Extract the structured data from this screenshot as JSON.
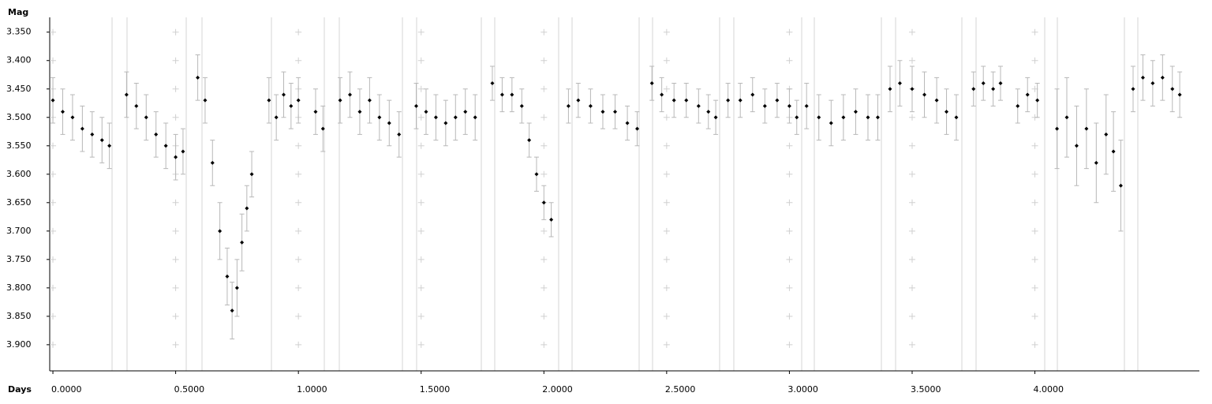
{
  "chart_data": {
    "type": "scatter",
    "x_label": "Days",
    "y_label": "Mag",
    "x": [
      0.0,
      0.04,
      0.08,
      0.12,
      0.16,
      0.2,
      0.23,
      0.3,
      0.34,
      0.38,
      0.42,
      0.46,
      0.5,
      0.53,
      0.59,
      0.62,
      0.65,
      0.68,
      0.71,
      0.73,
      0.75,
      0.77,
      0.79,
      0.81,
      0.88,
      0.91,
      0.94,
      0.97,
      1.0,
      1.07,
      1.1,
      1.17,
      1.21,
      1.25,
      1.29,
      1.33,
      1.37,
      1.41,
      1.48,
      1.52,
      1.56,
      1.6,
      1.64,
      1.68,
      1.72,
      1.79,
      1.83,
      1.87,
      1.91,
      1.94,
      1.97,
      2.0,
      2.03,
      2.1,
      2.14,
      2.19,
      2.24,
      2.29,
      2.34,
      2.38,
      2.44,
      2.48,
      2.53,
      2.58,
      2.63,
      2.67,
      2.7,
      2.75,
      2.8,
      2.85,
      2.9,
      2.95,
      3.0,
      3.03,
      3.07,
      3.12,
      3.17,
      3.22,
      3.27,
      3.32,
      3.36,
      3.41,
      3.45,
      3.5,
      3.55,
      3.6,
      3.64,
      3.68,
      3.75,
      3.79,
      3.83,
      3.86,
      3.93,
      3.97,
      4.01,
      4.09,
      4.13,
      4.17,
      4.21,
      4.25,
      4.29,
      4.32,
      4.35,
      4.4,
      4.44,
      4.48,
      4.52,
      4.56,
      4.59
    ],
    "values": [
      3.47,
      3.49,
      3.5,
      3.52,
      3.53,
      3.54,
      3.55,
      3.46,
      3.48,
      3.5,
      3.53,
      3.55,
      3.57,
      3.56,
      3.43,
      3.47,
      3.58,
      3.7,
      3.78,
      3.84,
      3.8,
      3.72,
      3.66,
      3.6,
      3.47,
      3.5,
      3.46,
      3.48,
      3.47,
      3.49,
      3.52,
      3.47,
      3.46,
      3.49,
      3.47,
      3.5,
      3.51,
      3.53,
      3.48,
      3.49,
      3.5,
      3.51,
      3.5,
      3.49,
      3.5,
      3.44,
      3.46,
      3.46,
      3.48,
      3.54,
      3.6,
      3.65,
      3.68,
      3.48,
      3.47,
      3.48,
      3.49,
      3.49,
      3.51,
      3.52,
      3.44,
      3.46,
      3.47,
      3.47,
      3.48,
      3.49,
      3.5,
      3.47,
      3.47,
      3.46,
      3.48,
      3.47,
      3.48,
      3.5,
      3.48,
      3.5,
      3.51,
      3.5,
      3.49,
      3.5,
      3.5,
      3.45,
      3.44,
      3.45,
      3.46,
      3.47,
      3.49,
      3.5,
      3.45,
      3.44,
      3.45,
      3.44,
      3.48,
      3.46,
      3.47,
      3.52,
      3.5,
      3.55,
      3.52,
      3.58,
      3.53,
      3.56,
      3.62,
      3.45,
      3.43,
      3.44,
      3.43,
      3.45,
      3.46
    ],
    "errors": [
      0.04,
      0.04,
      0.04,
      0.04,
      0.04,
      0.04,
      0.04,
      0.04,
      0.04,
      0.04,
      0.04,
      0.04,
      0.04,
      0.04,
      0.04,
      0.04,
      0.04,
      0.05,
      0.05,
      0.05,
      0.05,
      0.05,
      0.04,
      0.04,
      0.04,
      0.04,
      0.04,
      0.04,
      0.04,
      0.04,
      0.04,
      0.04,
      0.04,
      0.04,
      0.04,
      0.04,
      0.04,
      0.04,
      0.04,
      0.04,
      0.04,
      0.04,
      0.04,
      0.04,
      0.04,
      0.03,
      0.03,
      0.03,
      0.03,
      0.03,
      0.03,
      0.03,
      0.03,
      0.03,
      0.03,
      0.03,
      0.03,
      0.03,
      0.03,
      0.03,
      0.03,
      0.03,
      0.03,
      0.03,
      0.03,
      0.03,
      0.03,
      0.03,
      0.03,
      0.03,
      0.03,
      0.03,
      0.03,
      0.03,
      0.04,
      0.04,
      0.04,
      0.04,
      0.04,
      0.04,
      0.04,
      0.04,
      0.04,
      0.04,
      0.04,
      0.04,
      0.04,
      0.04,
      0.03,
      0.03,
      0.03,
      0.03,
      0.03,
      0.03,
      0.03,
      0.07,
      0.07,
      0.07,
      0.07,
      0.07,
      0.07,
      0.07,
      0.08,
      0.04,
      0.04,
      0.04,
      0.04,
      0.04,
      0.04
    ],
    "color": "#000000",
    "error_color": "#b8b8b8",
    "xlim": [
      -0.013,
      4.67
    ],
    "xticks": [
      {
        "value": 0,
        "label": "0.0000"
      },
      {
        "value": 0.5,
        "label": "0.5000"
      },
      {
        "value": 1,
        "label": "1.0000"
      },
      {
        "value": 1.5,
        "label": "1.5000"
      },
      {
        "value": 2,
        "label": "2.0000"
      },
      {
        "value": 2.5,
        "label": "2.5000"
      },
      {
        "value": 3,
        "label": "3.0000"
      },
      {
        "value": 3.5,
        "label": "3.5000"
      },
      {
        "value": 4,
        "label": "4.0000"
      }
    ],
    "ylim": [
      3.946,
      3.324
    ],
    "yticks": [
      {
        "value": 3.35,
        "label": "3.350"
      },
      {
        "value": 3.4,
        "label": "3.400"
      },
      {
        "value": 3.45,
        "label": "3.450"
      },
      {
        "value": 3.5,
        "label": "3.500"
      },
      {
        "value": 3.55,
        "label": "3.550"
      },
      {
        "value": 3.6,
        "label": "3.600"
      },
      {
        "value": 3.65,
        "label": "3.650"
      },
      {
        "value": 3.7,
        "label": "3.700"
      },
      {
        "value": 3.75,
        "label": "3.750"
      },
      {
        "value": 3.8,
        "label": "3.800"
      },
      {
        "value": 3.85,
        "label": "3.850"
      },
      {
        "value": 3.9,
        "label": "3.900"
      }
    ],
    "grid": true
  }
}
